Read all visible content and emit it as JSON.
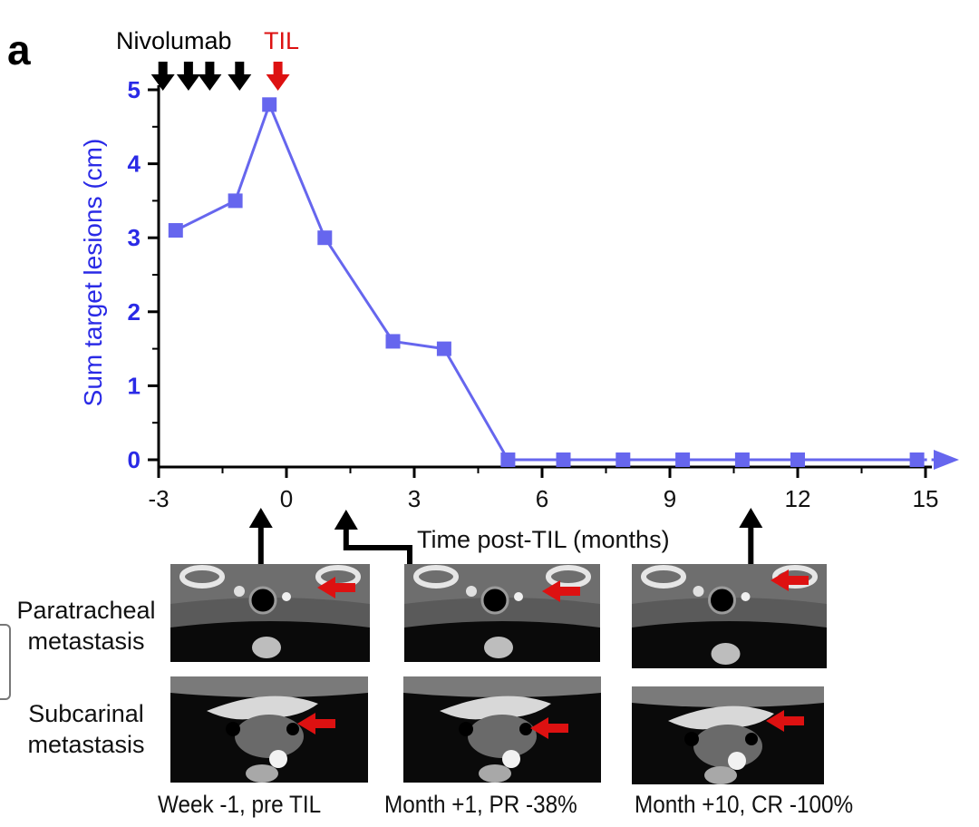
{
  "panel_label": "a",
  "chart_data": {
    "type": "line",
    "ylabel": "Sum target lesions (cm)",
    "xlabel": "Time post-TIL (months)",
    "xlim": [
      -3,
      16
    ],
    "ylim": [
      0,
      5
    ],
    "x_ticks": [
      -3,
      0,
      3,
      6,
      9,
      12,
      15
    ],
    "y_ticks": [
      0,
      1,
      2,
      3,
      4,
      5
    ],
    "series": [
      {
        "color": "#6666ee",
        "x": [
          -2.6,
          -1.2,
          -0.4,
          0.9,
          2.5,
          3.7,
          5.2,
          6.5,
          7.9,
          9.3,
          10.7,
          12.0,
          14.8
        ],
        "y": [
          3.1,
          3.5,
          4.8,
          3.0,
          1.6,
          1.5,
          0,
          0,
          0,
          0,
          0,
          0,
          0
        ]
      }
    ],
    "annotations": [
      {
        "text": "Nivolumab",
        "color": "#000000",
        "arrows_at_x": [
          -2.9,
          -2.3,
          -1.8,
          -1.1
        ]
      },
      {
        "text": "TIL",
        "color": "#dd1111",
        "arrows_at_x": [
          -0.2
        ]
      }
    ],
    "image_pointers_at_x": [
      -0.6,
      1.4,
      10.9
    ]
  },
  "axis_color": "#2a2ae6",
  "highlight_color": "#dd1111",
  "scans": {
    "row_labels": [
      "Paratracheal metastasis",
      "Subcarinal metastasis"
    ],
    "captions": [
      "Week -1, pre TIL",
      "Month +1, PR -38%",
      "Month +10, CR -100%"
    ]
  }
}
